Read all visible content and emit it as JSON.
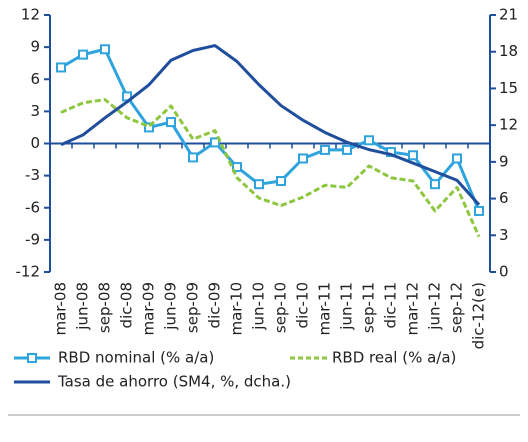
{
  "chart_data": {
    "type": "line",
    "categories": [
      "mar-08",
      "jun-08",
      "sep-08",
      "dic-08",
      "mar-09",
      "jun-09",
      "sep-09",
      "dic-09",
      "mar-10",
      "jun-10",
      "sep-10",
      "dic-10",
      "mar-11",
      "jun-11",
      "sep-11",
      "dic-11",
      "mar-12",
      "jun-12",
      "sep-12",
      "dic-12(e)"
    ],
    "series": [
      {
        "name": "RBD nominal (% a/a)",
        "color": "#2ea3dd",
        "marker": "square",
        "values": [
          7.1,
          8.3,
          8.8,
          4.4,
          1.5,
          2.0,
          -1.3,
          0.1,
          -2.2,
          -3.8,
          -3.5,
          -1.4,
          -0.6,
          -0.6,
          0.3,
          -0.8,
          -1.1,
          -3.8,
          -1.4,
          -6.3
        ]
      },
      {
        "name": "RBD real (% a/a)",
        "color": "#8dc63f",
        "dashed": true,
        "values": [
          2.9,
          3.8,
          4.1,
          2.4,
          1.6,
          3.5,
          0.4,
          1.2,
          -3.2,
          -5.1,
          -5.8,
          -5.0,
          -3.9,
          -4.1,
          -2.1,
          -3.2,
          -3.5,
          -6.3,
          -4.1,
          -8.7
        ]
      },
      {
        "name": "Tasa de ahorro (SM4, %, dcha.)",
        "color": "#1f4e9c",
        "axis": "y2",
        "values": [
          10.4,
          11.2,
          12.6,
          13.9,
          15.3,
          17.3,
          18.1,
          18.5,
          17.2,
          15.3,
          13.6,
          12.4,
          11.4,
          10.6,
          10.0,
          9.6,
          8.9,
          8.2,
          7.5,
          5.5
        ]
      }
    ],
    "ylim": [
      -12,
      12
    ],
    "yticks": [
      -12,
      -9,
      -6,
      -3,
      0,
      3,
      6,
      9,
      12
    ],
    "y2lim": [
      0,
      21
    ],
    "y2ticks": [
      0,
      3,
      6,
      9,
      12,
      15,
      18,
      21
    ]
  }
}
